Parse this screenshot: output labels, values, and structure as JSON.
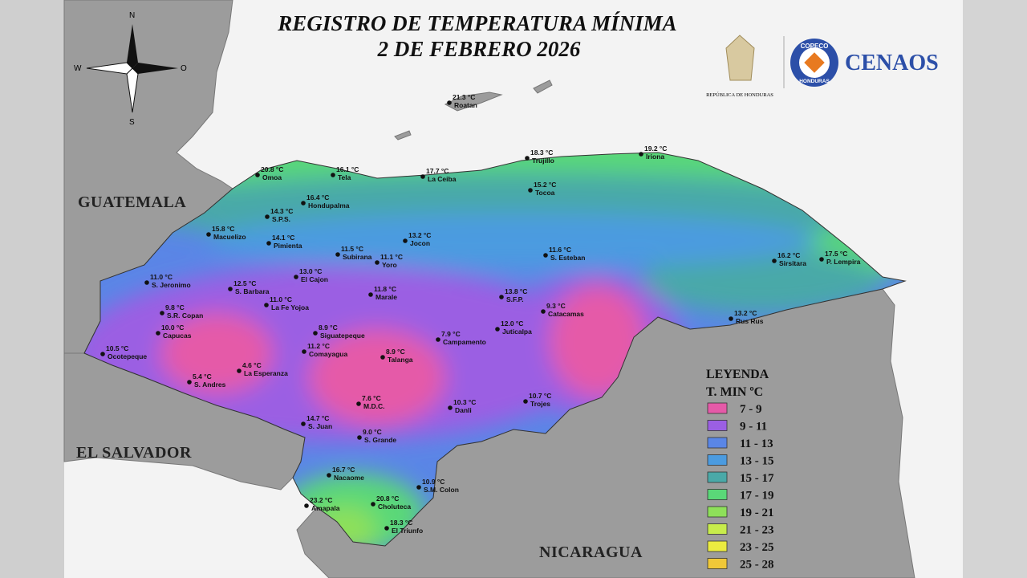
{
  "header": {
    "title": "REGISTRO DE TEMPERATURA MÍNIMA",
    "date": "2 DE FEBRERO 2026"
  },
  "logos": {
    "republic": "REPÚBLICA DE HONDURAS",
    "copeco_top": "COPECO",
    "copeco_bottom": "HONDURAS",
    "cenaos": "CENAOS"
  },
  "compass": {
    "north": "N",
    "west": "W",
    "east": "O",
    "south": "S"
  },
  "countries": {
    "guatemala": "GUATEMALA",
    "el_salvador": "EL SALVADOR",
    "nicaragua": "NICARAGUA"
  },
  "stations": [
    {
      "temp": "21.3 °C",
      "name": "Roatan"
    },
    {
      "temp": "18.3 °C",
      "name": "Trujillo"
    },
    {
      "temp": "19.2 °C",
      "name": "Iriona"
    },
    {
      "temp": "20.8 °C",
      "name": "Omoa"
    },
    {
      "temp": "16.1 °C",
      "name": "Tela"
    },
    {
      "temp": "17.7 °C",
      "name": "La Ceiba"
    },
    {
      "temp": "15.2 °C",
      "name": "Tocoa"
    },
    {
      "temp": "16.4 °C",
      "name": "Hondupalma"
    },
    {
      "temp": "14.3 °C",
      "name": "S.P.S."
    },
    {
      "temp": "15.8 °C",
      "name": "Macuelizo"
    },
    {
      "temp": "14.1 °C",
      "name": "Pimienta"
    },
    {
      "temp": "13.2 °C",
      "name": "Jocon"
    },
    {
      "temp": "11.5 °C",
      "name": "Subirana"
    },
    {
      "temp": "11.1 °C",
      "name": "Yoro"
    },
    {
      "temp": "11.6 °C",
      "name": "S. Esteban"
    },
    {
      "temp": "16.2 °C",
      "name": "Sirsitara"
    },
    {
      "temp": "17.5 °C",
      "name": "P. Lempira"
    },
    {
      "temp": "11.0 °C",
      "name": "S. Jeronimo"
    },
    {
      "temp": "12.5 °C",
      "name": "S. Barbara"
    },
    {
      "temp": "13.0 °C",
      "name": "El Cajon"
    },
    {
      "temp": "11.0 °C",
      "name": "La Fe Yojoa"
    },
    {
      "temp": "11.8 °C",
      "name": "Marale"
    },
    {
      "temp": "13.8 °C",
      "name": "S.F.P."
    },
    {
      "temp": "9.3 °C",
      "name": "Catacamas"
    },
    {
      "temp": "13.2 °C",
      "name": "Rus Rus"
    },
    {
      "temp": "9.8 °C",
      "name": "S.R. Copan"
    },
    {
      "temp": "10.0 °C",
      "name": "Capucas"
    },
    {
      "temp": "8.9 °C",
      "name": "Siguatepeque"
    },
    {
      "temp": "12.0 °C",
      "name": "Juticalpa"
    },
    {
      "temp": "7.9 °C",
      "name": "Campamento"
    },
    {
      "temp": "10.5 °C",
      "name": "Ocotepeque"
    },
    {
      "temp": "11.2 °C",
      "name": "Comayagua"
    },
    {
      "temp": "8.9 °C",
      "name": "Talanga"
    },
    {
      "temp": "5.4 °C",
      "name": "S. Andres"
    },
    {
      "temp": "4.6 °C",
      "name": "La Esperanza"
    },
    {
      "temp": "7.6 °C",
      "name": "M.D.C."
    },
    {
      "temp": "10.3 °C",
      "name": "Danli"
    },
    {
      "temp": "10.7 °C",
      "name": "Trojes"
    },
    {
      "temp": "14.7 °C",
      "name": "S. Juan"
    },
    {
      "temp": "9.0 °C",
      "name": "S. Grande"
    },
    {
      "temp": "16.7 °C",
      "name": "Nacaome"
    },
    {
      "temp": "10.9 °C",
      "name": "S.M. Colon"
    },
    {
      "temp": "23.2 °C",
      "name": "Amapala"
    },
    {
      "temp": "20.8 °C",
      "name": "Choluteca"
    },
    {
      "temp": "18.3 °C",
      "name": "El Triunfo"
    }
  ],
  "legend": {
    "title": "LEYENDA",
    "subtitle": "T. MIN ºC",
    "items": [
      {
        "label": "7 - 9",
        "color": "#e55aa8"
      },
      {
        "label": "9 - 11",
        "color": "#9b5fe3"
      },
      {
        "label": "11 - 13",
        "color": "#5a86e6"
      },
      {
        "label": "13 - 15",
        "color": "#4b9be0"
      },
      {
        "label": "15 - 17",
        "color": "#4aa9a8"
      },
      {
        "label": "17 - 19",
        "color": "#5ad878"
      },
      {
        "label": "19 - 21",
        "color": "#8ee05a"
      },
      {
        "label": "21 - 23",
        "color": "#c8ec4c"
      },
      {
        "label": "23 - 25",
        "color": "#ecec40"
      },
      {
        "label": "25 - 28",
        "color": "#f0c838"
      }
    ]
  }
}
